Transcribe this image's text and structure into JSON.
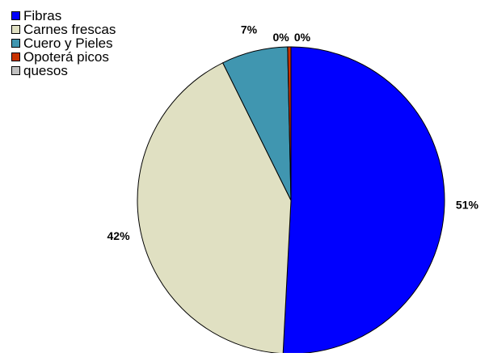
{
  "chart_data": {
    "type": "pie",
    "categories": [
      "Fibras",
      "Carnes frescas",
      "Cuero y Pieles",
      "Opoterá picos",
      "quesos"
    ],
    "values": [
      51,
      42,
      7,
      0,
      0
    ],
    "data_labels": [
      "51%",
      "42%",
      "7%",
      "0%",
      "0%"
    ],
    "colors": [
      "#0000FF",
      "#E0E0C2",
      "#4096B0",
      "#C83200",
      "#C0C0C0"
    ],
    "legend_position": "top-left",
    "title": ""
  }
}
